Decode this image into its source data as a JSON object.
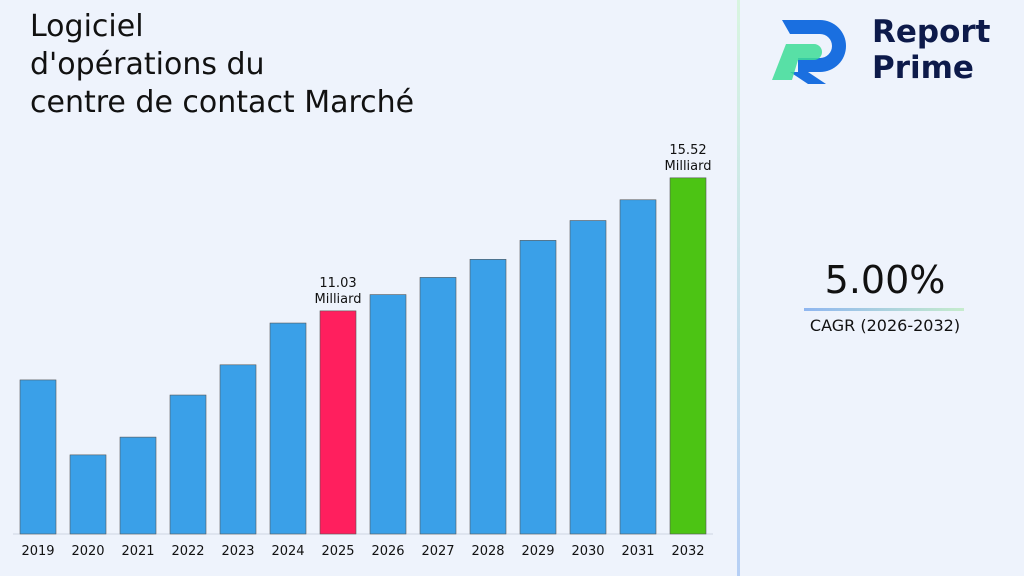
{
  "chart_data": {
    "type": "bar",
    "title": "Logiciel\nd'opérations du\ncentre de contact Marché",
    "categories": [
      "2019",
      "2020",
      "2021",
      "2022",
      "2023",
      "2024",
      "2025",
      "2026",
      "2027",
      "2028",
      "2029",
      "2030",
      "2031",
      "2032"
    ],
    "values": [
      8.7,
      6.17,
      6.77,
      8.19,
      9.21,
      10.62,
      11.03,
      11.58,
      12.16,
      12.77,
      13.41,
      14.08,
      14.78,
      15.52
    ],
    "value_labels": [
      null,
      null,
      null,
      null,
      null,
      null,
      "11.03 Milliard",
      null,
      null,
      null,
      null,
      null,
      null,
      "15.52 Milliard"
    ],
    "colors": [
      "#3aa0e8",
      "#3aa0e8",
      "#3aa0e8",
      "#3aa0e8",
      "#3aa0e8",
      "#3aa0e8",
      "#ff1f5e",
      "#3aa0e8",
      "#3aa0e8",
      "#3aa0e8",
      "#3aa0e8",
      "#3aa0e8",
      "#3aa0e8",
      "#4cc414"
    ],
    "ylim": [
      3.5,
      17
    ]
  },
  "logo": {
    "line1": "Report",
    "line2": "Prime"
  },
  "cagr": {
    "value": "5.00%",
    "label": "CAGR (2026-2032)"
  }
}
